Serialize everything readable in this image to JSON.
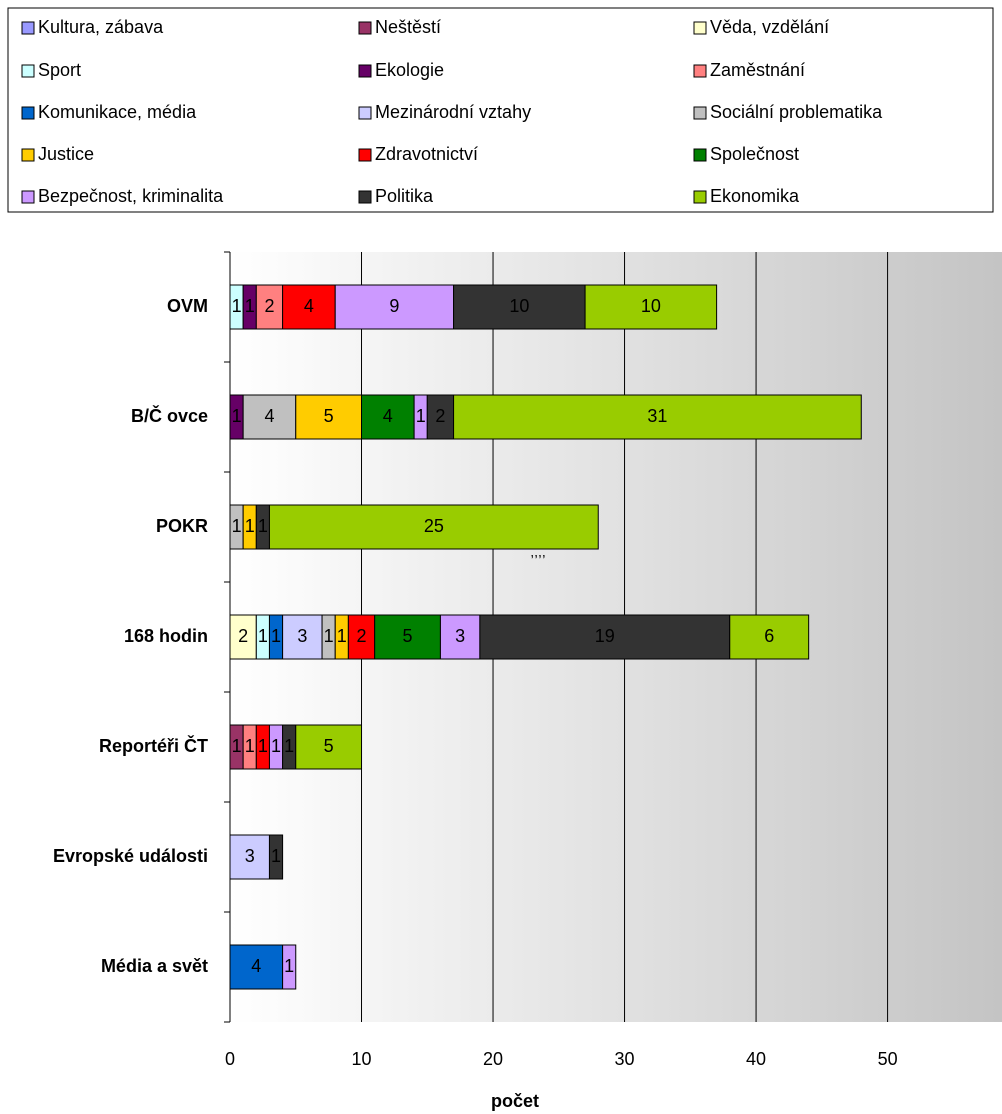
{
  "chart_data": {
    "type": "stacked-barh",
    "xlabel": "počet",
    "categories": [
      "OVM",
      "B/Č ovce",
      "POKR",
      "168 hodin",
      "Reportéři ČT",
      "Evropské události",
      "Média a svět"
    ],
    "series": [
      {
        "name": "Kultura, zábava",
        "color": "#9999ff",
        "values": [
          null,
          null,
          null,
          null,
          null,
          null,
          null
        ]
      },
      {
        "name": "Neštěstí",
        "color": "#993366",
        "values": [
          null,
          null,
          null,
          null,
          1,
          null,
          null
        ]
      },
      {
        "name": "Věda, vzdělání",
        "color": "#ffffcc",
        "values": [
          null,
          null,
          null,
          2,
          null,
          null,
          null
        ]
      },
      {
        "name": "Sport",
        "color": "#ccffff",
        "values": [
          1,
          null,
          null,
          1,
          null,
          null,
          null
        ]
      },
      {
        "name": "Ekologie",
        "color": "#660066",
        "values": [
          1,
          1,
          null,
          null,
          null,
          null,
          null
        ]
      },
      {
        "name": "Zaměstnání",
        "color": "#ff8080",
        "values": [
          2,
          null,
          null,
          null,
          1,
          null,
          null
        ]
      },
      {
        "name": "Komunikace, média",
        "color": "#0066cc",
        "values": [
          null,
          null,
          null,
          1,
          null,
          null,
          4
        ]
      },
      {
        "name": "Mezinárodní vztahy",
        "color": "#ccccff",
        "values": [
          null,
          null,
          null,
          3,
          null,
          3,
          null
        ]
      },
      {
        "name": "Sociální problematika",
        "color": "#c0c0c0",
        "values": [
          null,
          4,
          1,
          1,
          null,
          null,
          null
        ]
      },
      {
        "name": "Justice",
        "color": "#ffcc00",
        "values": [
          null,
          5,
          1,
          1,
          null,
          null,
          null
        ]
      },
      {
        "name": "Zdravotnictví",
        "color": "#ff0000",
        "values": [
          4,
          null,
          null,
          2,
          1,
          null,
          null
        ]
      },
      {
        "name": "Společnost",
        "color": "#008000",
        "values": [
          null,
          4,
          null,
          5,
          null,
          null,
          null
        ]
      },
      {
        "name": "Bezpečnost, kriminalita",
        "color": "#cc99ff",
        "values": [
          9,
          1,
          null,
          3,
          1,
          null,
          1
        ]
      },
      {
        "name": "Politika",
        "color": "#333333",
        "values": [
          10,
          2,
          1,
          19,
          1,
          1,
          null
        ]
      },
      {
        "name": "Ekonomika",
        "color": "#99cc00",
        "values": [
          10,
          31,
          25,
          6,
          5,
          null,
          null
        ]
      }
    ],
    "xlim": [
      0,
      58.7
    ],
    "xticks": [
      0,
      10,
      20,
      30,
      40,
      50
    ],
    "grid": true,
    "annotations": [
      "....",
      ",,,,"
    ]
  }
}
